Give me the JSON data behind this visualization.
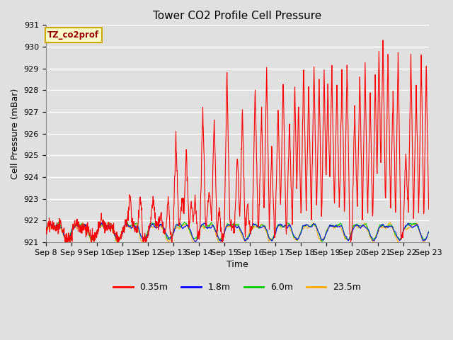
{
  "title": "Tower CO2 Profile Cell Pressure",
  "xlabel": "Time",
  "ylabel": "Cell Pressure (mBar)",
  "ylim": [
    921.0,
    931.0
  ],
  "yticks": [
    921.0,
    922.0,
    923.0,
    924.0,
    925.0,
    926.0,
    927.0,
    928.0,
    929.0,
    930.0,
    931.0
  ],
  "xtick_labels": [
    "Sep 8",
    "Sep 9",
    "Sep 10",
    "Sep 11",
    "Sep 12",
    "Sep 13",
    "Sep 14",
    "Sep 15",
    "Sep 16",
    "Sep 17",
    "Sep 18",
    "Sep 19",
    "Sep 20",
    "Sep 21",
    "Sep 22",
    "Sep 23"
  ],
  "colors": {
    "0.35m": "#ff0000",
    "1.8m": "#0000ff",
    "6.0m": "#00cc00",
    "23.5m": "#ffaa00"
  },
  "legend_label_box": "TZ_co2prof",
  "legend_box_facecolor": "#ffffcc",
  "legend_box_edgecolor": "#ccaa00",
  "background_color": "#e0e0e0",
  "fig_facecolor": "#e0e0e0",
  "grid_color": "#ffffff",
  "title_fontsize": 11,
  "axis_fontsize": 9,
  "tick_fontsize": 8
}
